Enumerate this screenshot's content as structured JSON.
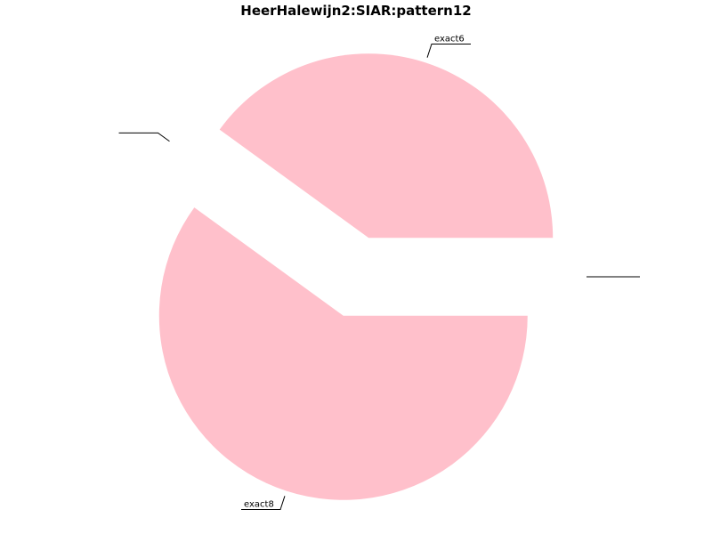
{
  "chart_data": {
    "type": "pie",
    "title": "HeerHalewijn2:SIAR:pattern12",
    "slices": [
      {
        "label": "exact6",
        "value": 40,
        "color": "#ffc0cb"
      },
      {
        "label": "",
        "value": 0,
        "color": "#ffc0cb"
      },
      {
        "label": "exact8",
        "value": 60,
        "color": "#ffc0cb"
      },
      {
        "label": "",
        "value": 0,
        "color": "#ffc0cb"
      }
    ],
    "start_angle_deg": 0,
    "direction": "counterclockwise",
    "legend": "none"
  }
}
